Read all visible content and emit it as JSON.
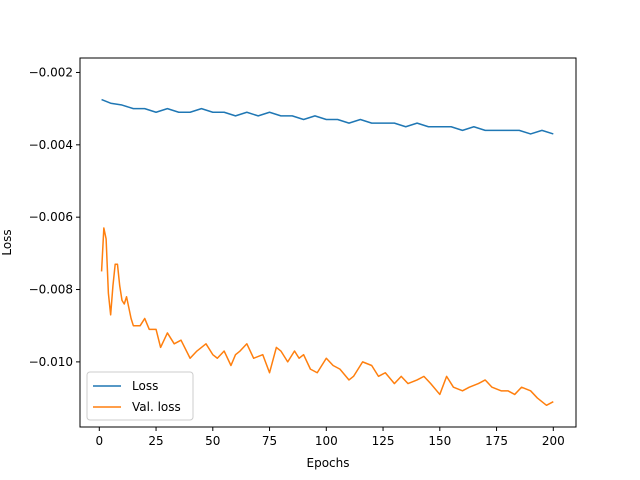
{
  "chart_data": {
    "type": "line",
    "title": "",
    "xlabel": "Epochs",
    "ylabel": "Loss",
    "xlim": [
      -8.5,
      210
    ],
    "ylim": [
      -0.0118,
      -0.0016
    ],
    "xticks": [
      0,
      25,
      50,
      75,
      100,
      125,
      150,
      175,
      200
    ],
    "xtick_labels": [
      "0",
      "25",
      "50",
      "75",
      "100",
      "125",
      "150",
      "175",
      "200"
    ],
    "yticks": [
      -0.01,
      -0.008,
      -0.006,
      -0.004,
      -0.002
    ],
    "ytick_labels": [
      "−0.010",
      "−0.008",
      "−0.006",
      "−0.004",
      "−0.002"
    ],
    "grid": false,
    "legend_position": "lower-left",
    "series": [
      {
        "name": "Loss",
        "color": "#1f77b4",
        "x": [
          1,
          5,
          10,
          15,
          20,
          25,
          30,
          35,
          40,
          45,
          50,
          55,
          60,
          65,
          70,
          75,
          80,
          85,
          90,
          95,
          100,
          105,
          110,
          115,
          120,
          125,
          130,
          135,
          140,
          145,
          150,
          155,
          160,
          165,
          170,
          175,
          180,
          185,
          190,
          195,
          200
        ],
        "values": [
          -0.00275,
          -0.00285,
          -0.0029,
          -0.003,
          -0.003,
          -0.0031,
          -0.003,
          -0.0031,
          -0.0031,
          -0.003,
          -0.0031,
          -0.0031,
          -0.0032,
          -0.0031,
          -0.0032,
          -0.0031,
          -0.0032,
          -0.0032,
          -0.0033,
          -0.0032,
          -0.0033,
          -0.0033,
          -0.0034,
          -0.0033,
          -0.0034,
          -0.0034,
          -0.0034,
          -0.0035,
          -0.0034,
          -0.0035,
          -0.0035,
          -0.0035,
          -0.0036,
          -0.0035,
          -0.0036,
          -0.0036,
          -0.0036,
          -0.0036,
          -0.0037,
          -0.0036,
          -0.0037
        ]
      },
      {
        "name": "Val. loss",
        "color": "#ff7f0e",
        "x": [
          1,
          2,
          3,
          4,
          5,
          6,
          7,
          8,
          9,
          10,
          11,
          12,
          13,
          14,
          15,
          18,
          20,
          22,
          25,
          27,
          30,
          33,
          36,
          40,
          43,
          47,
          50,
          52,
          55,
          58,
          60,
          62,
          65,
          68,
          72,
          75,
          78,
          80,
          83,
          86,
          88,
          90,
          93,
          96,
          100,
          103,
          106,
          110,
          112,
          116,
          120,
          123,
          126,
          130,
          133,
          136,
          140,
          143,
          146,
          150,
          153,
          156,
          160,
          163,
          167,
          170,
          173,
          177,
          180,
          183,
          186,
          190,
          193,
          197,
          200
        ],
        "values": [
          -0.0075,
          -0.0063,
          -0.0066,
          -0.0081,
          -0.0087,
          -0.0079,
          -0.0073,
          -0.0073,
          -0.0079,
          -0.0083,
          -0.0084,
          -0.0082,
          -0.0085,
          -0.0088,
          -0.009,
          -0.009,
          -0.0088,
          -0.0091,
          -0.0091,
          -0.0096,
          -0.0092,
          -0.0095,
          -0.0094,
          -0.0099,
          -0.0097,
          -0.0095,
          -0.0098,
          -0.0099,
          -0.0097,
          -0.0101,
          -0.0098,
          -0.0097,
          -0.0095,
          -0.0099,
          -0.0098,
          -0.0103,
          -0.0096,
          -0.0097,
          -0.01,
          -0.0097,
          -0.0099,
          -0.0098,
          -0.0102,
          -0.0103,
          -0.0099,
          -0.0101,
          -0.0102,
          -0.0105,
          -0.0104,
          -0.01,
          -0.0101,
          -0.0104,
          -0.0103,
          -0.0106,
          -0.0104,
          -0.0106,
          -0.0105,
          -0.0104,
          -0.0106,
          -0.0109,
          -0.0104,
          -0.0107,
          -0.0108,
          -0.0107,
          -0.0106,
          -0.0105,
          -0.0107,
          -0.0108,
          -0.0108,
          -0.0109,
          -0.0107,
          -0.0108,
          -0.011,
          -0.0112,
          -0.0111
        ]
      }
    ]
  }
}
